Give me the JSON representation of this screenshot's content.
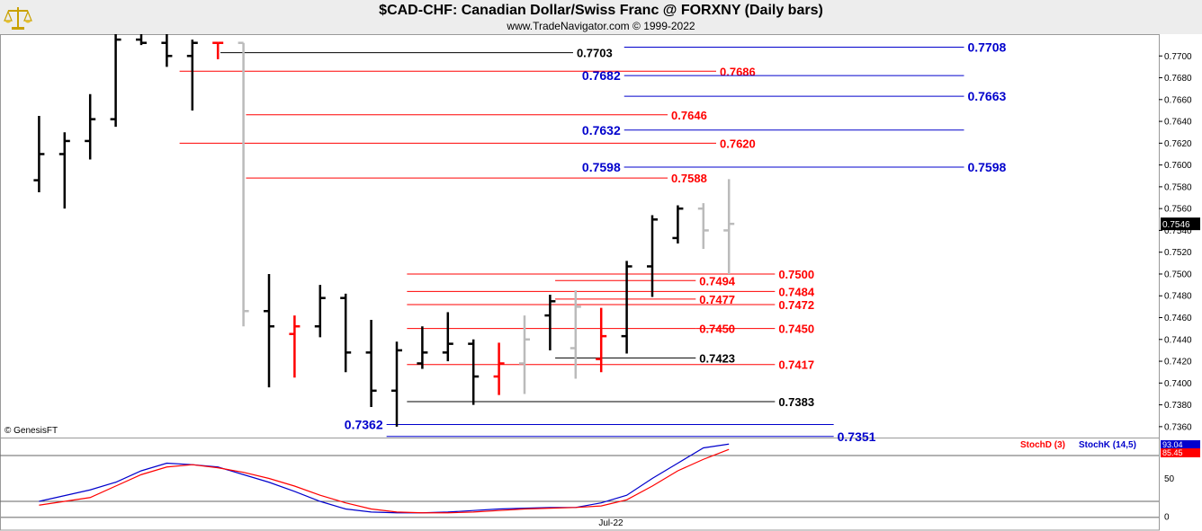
{
  "header": {
    "title": "$CAD-CHF:  Canadian Dollar/Swiss Franc @ FORXNY  (Daily bars)",
    "subtitle": "www.TradeNavigator.com © 1999-2022"
  },
  "footer": {
    "copyright": "© GenesisFT",
    "x_label": "Jul-22"
  },
  "colors": {
    "black": "#000000",
    "red": "#ff0000",
    "gray": "#bbbbbb",
    "blue": "#0000cc"
  },
  "chart_data": {
    "type": "bar",
    "instrument": "$CAD-CHF",
    "ylim": [
      0.735,
      0.772
    ],
    "y_ticks": [
      "0.7700",
      "0.7680",
      "0.7660",
      "0.7640",
      "0.7620",
      "0.7600",
      "0.7580",
      "0.7560",
      "0.7540",
      "0.7520",
      "0.7500",
      "0.7480",
      "0.7460",
      "0.7440",
      "0.7420",
      "0.7400",
      "0.7380",
      "0.7360"
    ],
    "last_price_label": "0.7546",
    "bars": [
      {
        "x": 1,
        "o": 0.7586,
        "h": 0.7645,
        "l": 0.7575,
        "c": 0.761,
        "color": "black"
      },
      {
        "x": 2,
        "o": 0.761,
        "h": 0.763,
        "l": 0.756,
        "c": 0.7622,
        "color": "black"
      },
      {
        "x": 3,
        "o": 0.7622,
        "h": 0.7665,
        "l": 0.7605,
        "c": 0.7642,
        "color": "black"
      },
      {
        "x": 4,
        "o": 0.7642,
        "h": 0.772,
        "l": 0.7635,
        "c": 0.7715,
        "color": "black"
      },
      {
        "x": 5,
        "o": 0.7715,
        "h": 0.7725,
        "l": 0.771,
        "c": 0.7712,
        "color": "black"
      },
      {
        "x": 6,
        "o": 0.7712,
        "h": 0.772,
        "l": 0.769,
        "c": 0.77,
        "color": "black"
      },
      {
        "x": 7,
        "o": 0.77,
        "h": 0.7715,
        "l": 0.765,
        "c": 0.7712,
        "color": "black"
      },
      {
        "x": 8,
        "o": 0.7712,
        "h": 0.7712,
        "l": 0.7697,
        "c": 0.7712,
        "color": "red"
      },
      {
        "x": 9,
        "o": 0.7712,
        "h": 0.7712,
        "l": 0.7452,
        "c": 0.7466,
        "color": "gray"
      },
      {
        "x": 10,
        "o": 0.7466,
        "h": 0.75,
        "l": 0.7396,
        "c": 0.7452,
        "color": "black"
      },
      {
        "x": 11,
        "o": 0.7445,
        "h": 0.7462,
        "l": 0.7405,
        "c": 0.7452,
        "color": "red"
      },
      {
        "x": 12,
        "o": 0.7452,
        "h": 0.749,
        "l": 0.7442,
        "c": 0.7478,
        "color": "black"
      },
      {
        "x": 13,
        "o": 0.7478,
        "h": 0.7482,
        "l": 0.741,
        "c": 0.7428,
        "color": "black"
      },
      {
        "x": 14,
        "o": 0.7428,
        "h": 0.7458,
        "l": 0.7378,
        "c": 0.7393,
        "color": "black"
      },
      {
        "x": 15,
        "o": 0.7393,
        "h": 0.7438,
        "l": 0.736,
        "c": 0.743,
        "color": "black"
      },
      {
        "x": 16,
        "o": 0.7418,
        "h": 0.7452,
        "l": 0.7413,
        "c": 0.7428,
        "color": "black"
      },
      {
        "x": 17,
        "o": 0.7428,
        "h": 0.7465,
        "l": 0.742,
        "c": 0.7436,
        "color": "black"
      },
      {
        "x": 18,
        "o": 0.7436,
        "h": 0.744,
        "l": 0.738,
        "c": 0.7406,
        "color": "black"
      },
      {
        "x": 19,
        "o": 0.7406,
        "h": 0.7437,
        "l": 0.7389,
        "c": 0.7418,
        "color": "red"
      },
      {
        "x": 20,
        "o": 0.7418,
        "h": 0.7462,
        "l": 0.739,
        "c": 0.744,
        "color": "gray"
      },
      {
        "x": 21,
        "o": 0.7462,
        "h": 0.7481,
        "l": 0.743,
        "c": 0.7475,
        "color": "black"
      },
      {
        "x": 22,
        "o": 0.7432,
        "h": 0.7485,
        "l": 0.7404,
        "c": 0.747,
        "color": "gray"
      },
      {
        "x": 23,
        "o": 0.7422,
        "h": 0.7469,
        "l": 0.741,
        "c": 0.7443,
        "color": "red"
      },
      {
        "x": 24,
        "o": 0.7443,
        "h": 0.7512,
        "l": 0.7427,
        "c": 0.7507,
        "color": "black"
      },
      {
        "x": 25,
        "o": 0.7507,
        "h": 0.7554,
        "l": 0.7479,
        "c": 0.755,
        "color": "black"
      },
      {
        "x": 26,
        "o": 0.7533,
        "h": 0.7563,
        "l": 0.7528,
        "c": 0.756,
        "color": "black"
      },
      {
        "x": 27,
        "o": 0.756,
        "h": 0.7565,
        "l": 0.7523,
        "c": 0.754,
        "color": "gray"
      },
      {
        "x": 28,
        "o": 0.754,
        "h": 0.7587,
        "l": 0.75,
        "c": 0.7546,
        "color": "gray"
      }
    ],
    "levels": [
      {
        "value": 0.7703,
        "label": "0.7703",
        "color": "black",
        "x1": 8.1,
        "x2": 21.9,
        "label_side": "right"
      },
      {
        "value": 0.7708,
        "label": "0.7708",
        "color": "blue",
        "x1": 23.9,
        "x2": 37.2,
        "label_side": "right"
      },
      {
        "value": 0.7686,
        "label": "0.7686",
        "color": "red",
        "x1": 6.5,
        "x2": 27.5,
        "label_side": "right"
      },
      {
        "value": 0.7682,
        "label": "0.7682",
        "color": "blue",
        "x1": 23.9,
        "x2": 37.2,
        "label_side": "left"
      },
      {
        "value": 0.7663,
        "label": "0.7663",
        "color": "blue",
        "x1": 23.9,
        "x2": 37.2,
        "label_side": "right"
      },
      {
        "value": 0.7646,
        "label": "0.7646",
        "color": "red",
        "x1": 9.1,
        "x2": 25.6,
        "label_side": "right"
      },
      {
        "value": 0.7632,
        "label": "0.7632",
        "color": "blue",
        "x1": 23.9,
        "x2": 37.2,
        "label_side": "left"
      },
      {
        "value": 0.762,
        "label": "0.7620",
        "color": "red",
        "x1": 6.5,
        "x2": 27.5,
        "label_side": "right"
      },
      {
        "value": 0.7598,
        "label": "0.7598",
        "color": "blue",
        "x1": 23.9,
        "x2": 37.2,
        "label_side": "left"
      },
      {
        "value": 0.7598,
        "label": "0.7598",
        "color": "blue",
        "x1": 23.9,
        "x2": 37.2,
        "label_side": "right"
      },
      {
        "value": 0.7588,
        "label": "0.7588",
        "color": "red",
        "x1": 9.1,
        "x2": 25.6,
        "label_side": "right"
      },
      {
        "value": 0.75,
        "label": "0.7500",
        "color": "red",
        "x1": 15.4,
        "x2": 29.8,
        "label_side": "right"
      },
      {
        "value": 0.7494,
        "label": "0.7494",
        "color": "red",
        "x1": 21.2,
        "x2": 26.7,
        "label_side": "right"
      },
      {
        "value": 0.7484,
        "label": "0.7484",
        "color": "red",
        "x1": 15.4,
        "x2": 29.8,
        "label_side": "right"
      },
      {
        "value": 0.7477,
        "label": "0.7477",
        "color": "red",
        "x1": 21.2,
        "x2": 26.7,
        "label_side": "right"
      },
      {
        "value": 0.7472,
        "label": "0.7472",
        "color": "red",
        "x1": 15.4,
        "x2": 29.8,
        "label_side": "right"
      },
      {
        "value": 0.745,
        "label": "0.7450",
        "color": "red",
        "x1": 15.4,
        "x2": 26.7,
        "label_side": "right"
      },
      {
        "value": 0.745,
        "label": "0.7450",
        "color": "red",
        "x1": 26.7,
        "x2": 29.8,
        "label_side": "right"
      },
      {
        "value": 0.7423,
        "label": "0.7423",
        "color": "black",
        "x1": 21.2,
        "x2": 26.7,
        "label_side": "right"
      },
      {
        "value": 0.7417,
        "label": "0.7417",
        "color": "red",
        "x1": 15.4,
        "x2": 29.8,
        "label_side": "right"
      },
      {
        "value": 0.7383,
        "label": "0.7383",
        "color": "black",
        "x1": 15.4,
        "x2": 29.8,
        "label_side": "right"
      },
      {
        "value": 0.7362,
        "label": "0.7362",
        "color": "blue",
        "x1": 14.6,
        "x2": 32.1,
        "label_side": "left"
      },
      {
        "value": 0.7351,
        "label": "0.7351",
        "color": "blue",
        "x1": 14.6,
        "x2": 32.1,
        "label_side": "right"
      }
    ],
    "stochastic": {
      "ylim": [
        0,
        100
      ],
      "y_ticks": [
        "50",
        "0"
      ],
      "ref_lines": [
        80,
        20
      ],
      "series": [
        {
          "name": "StochK (14,5)",
          "color": "blue",
          "last_label": "93.04",
          "values": [
            [
              1,
              20
            ],
            [
              3,
              35
            ],
            [
              4,
              45
            ],
            [
              5,
              60
            ],
            [
              6,
              70
            ],
            [
              7,
              68
            ],
            [
              8,
              65
            ],
            [
              9,
              55
            ],
            [
              10,
              45
            ],
            [
              11,
              33
            ],
            [
              12,
              20
            ],
            [
              13,
              10
            ],
            [
              14,
              6
            ],
            [
              15,
              5
            ],
            [
              16,
              5
            ],
            [
              17,
              6
            ],
            [
              18,
              8
            ],
            [
              19,
              10
            ],
            [
              20,
              11
            ],
            [
              21,
              12
            ],
            [
              22,
              12
            ],
            [
              23,
              18
            ],
            [
              24,
              28
            ],
            [
              25,
              50
            ],
            [
              26,
              70
            ],
            [
              27,
              90
            ],
            [
              28,
              95
            ]
          ]
        },
        {
          "name": "StochD (3)",
          "color": "red",
          "last_label": "85.45",
          "values": [
            [
              1,
              15
            ],
            [
              3,
              25
            ],
            [
              4,
              40
            ],
            [
              5,
              55
            ],
            [
              6,
              65
            ],
            [
              7,
              68
            ],
            [
              8,
              64
            ],
            [
              9,
              58
            ],
            [
              10,
              50
            ],
            [
              11,
              40
            ],
            [
              12,
              28
            ],
            [
              13,
              18
            ],
            [
              14,
              10
            ],
            [
              15,
              6
            ],
            [
              16,
              5
            ],
            [
              17,
              5
            ],
            [
              18,
              6
            ],
            [
              19,
              8
            ],
            [
              20,
              10
            ],
            [
              21,
              11
            ],
            [
              22,
              12
            ],
            [
              23,
              14
            ],
            [
              24,
              22
            ],
            [
              25,
              40
            ],
            [
              26,
              60
            ],
            [
              27,
              75
            ],
            [
              28,
              88
            ]
          ]
        }
      ]
    },
    "x_ticks": [
      "Jul-22"
    ]
  }
}
